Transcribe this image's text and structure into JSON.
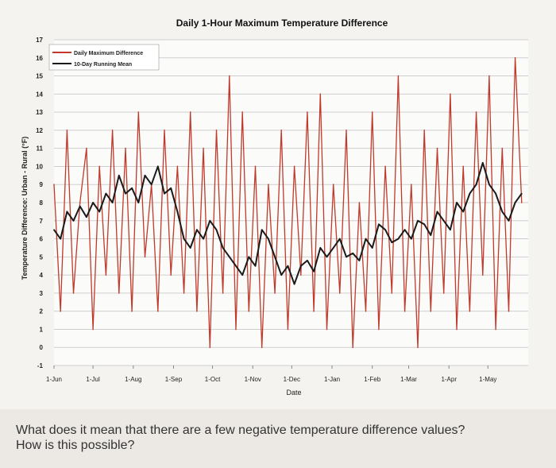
{
  "question": {
    "line1": "What does it mean that there are a few negative temperature difference values?",
    "line2": "How is this possible?"
  },
  "colors": {
    "daily": "#c0392b",
    "mean": "#1a1a1a",
    "grid": "#cfcfcf",
    "text": "#222222"
  },
  "chart_data": {
    "type": "line",
    "title": "Daily 1-Hour Maximum Temperature Difference",
    "xlabel": "Date",
    "ylabel": "Temperature Difference: Urban - Rural (°F)",
    "ylim": [
      -1,
      17
    ],
    "yticks": [
      "-1",
      "0",
      "1",
      "2",
      "3",
      "4",
      "5",
      "6",
      "7",
      "8",
      "9",
      "10",
      "11",
      "12",
      "13",
      "14",
      "15",
      "16",
      "17"
    ],
    "xticks": [
      "1-Jun",
      "1-Jul",
      "1-Aug",
      "1-Sep",
      "1-Oct",
      "1-Nov",
      "1-Dec",
      "1-Jan",
      "1-Feb",
      "1-Mar",
      "1-Apr",
      "1-May"
    ],
    "x_range_days": [
      0,
      365
    ],
    "grid": true,
    "legend_position": "top-left",
    "series": [
      {
        "name": "Daily Maximum Difference",
        "color": "#c0392b",
        "x": [
          0,
          5,
          10,
          15,
          20,
          25,
          30,
          35,
          40,
          45,
          50,
          55,
          60,
          65,
          70,
          75,
          80,
          85,
          90,
          95,
          100,
          105,
          110,
          115,
          120,
          125,
          130,
          135,
          140,
          145,
          150,
          155,
          160,
          165,
          170,
          175,
          180,
          185,
          190,
          195,
          200,
          205,
          210,
          215,
          220,
          225,
          230,
          235,
          240,
          245,
          250,
          255,
          260,
          265,
          270,
          275,
          280,
          285,
          290,
          295,
          300,
          305,
          310,
          315,
          320,
          325,
          330,
          335,
          340,
          345,
          350,
          355,
          360
        ],
        "values": [
          9,
          2,
          12,
          3,
          8,
          11,
          1,
          10,
          4,
          12,
          3,
          11,
          2,
          13,
          5,
          9,
          2,
          12,
          4,
          10,
          3,
          13,
          2,
          11,
          0,
          12,
          3,
          15,
          1,
          13,
          2,
          10,
          0,
          9,
          3,
          12,
          1,
          10,
          4,
          13,
          2,
          14,
          1,
          9,
          3,
          12,
          0,
          8,
          2,
          13,
          1,
          10,
          3,
          15,
          2,
          9,
          0,
          12,
          2,
          11,
          3,
          14,
          1,
          10,
          2,
          13,
          4,
          15,
          1,
          11,
          2,
          16,
          8
        ]
      },
      {
        "name": "10-Day Running Mean",
        "color": "#1a1a1a",
        "x": [
          0,
          5,
          10,
          15,
          20,
          25,
          30,
          35,
          40,
          45,
          50,
          55,
          60,
          65,
          70,
          75,
          80,
          85,
          90,
          95,
          100,
          105,
          110,
          115,
          120,
          125,
          130,
          135,
          140,
          145,
          150,
          155,
          160,
          165,
          170,
          175,
          180,
          185,
          190,
          195,
          200,
          205,
          210,
          215,
          220,
          225,
          230,
          235,
          240,
          245,
          250,
          255,
          260,
          265,
          270,
          275,
          280,
          285,
          290,
          295,
          300,
          305,
          310,
          315,
          320,
          325,
          330,
          335,
          340,
          345,
          350,
          355,
          360
        ],
        "values": [
          6.5,
          6,
          7.5,
          7,
          7.8,
          7.2,
          8,
          7.5,
          8.5,
          8,
          9.5,
          8.5,
          8.8,
          8,
          9.5,
          9,
          10,
          8.5,
          8.8,
          7.5,
          6,
          5.5,
          6.5,
          6,
          7,
          6.5,
          5.5,
          5,
          4.5,
          4,
          5,
          4.5,
          6.5,
          6,
          5,
          4,
          4.5,
          3.5,
          4.5,
          4.8,
          4.2,
          5.5,
          5,
          5.5,
          6,
          5,
          5.2,
          4.8,
          6,
          5.5,
          6.8,
          6.5,
          5.8,
          6,
          6.5,
          6,
          7,
          6.8,
          6.2,
          7.5,
          7,
          6.5,
          8,
          7.5,
          8.5,
          9,
          10.2,
          9,
          8.5,
          7.5,
          7,
          8,
          8.5
        ]
      }
    ]
  }
}
